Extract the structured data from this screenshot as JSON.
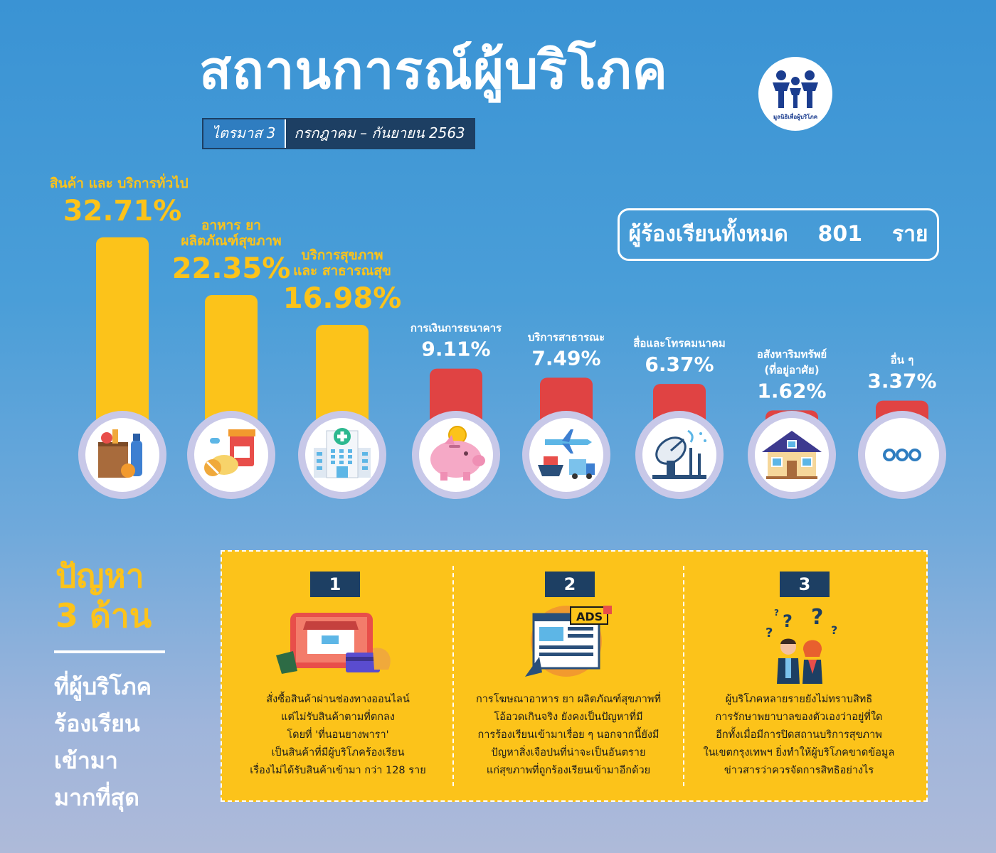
{
  "header": {
    "title": "สถานการณ์ผู้บริโภค",
    "quarter": "ไตรมาส 3",
    "period": "กรกฎาคม – กันยายน 2563",
    "logo_text": "มูลนิธิเพื่อผู้บริโภค"
  },
  "total": {
    "label": "ผู้ร้องเรียนทั้งหมด",
    "count": "801",
    "unit": "ราย"
  },
  "chart_data": {
    "type": "bar",
    "categories": [
      "สินค้า และ บริการทั่วไป",
      "อาหาร ยา ผลิตภัณฑ์สุขภาพ",
      "บริการสุขภาพ และ สาธารณสุข",
      "การเงินการธนาคาร",
      "บริการสาธารณะ",
      "สื่อและโทรคมนาคม",
      "อสังหาริมทรัพย์ (ที่อยู่อาศัย)",
      "อื่น ๆ"
    ],
    "label_lines": [
      [
        "สินค้า และ บริการทั่วไป"
      ],
      [
        "อาหาร ยา",
        "ผลิตภัณฑ์สุขภาพ"
      ],
      [
        "บริการสุขภาพ",
        "และ สาธารณสุข"
      ],
      [
        "การเงินการธนาคาร"
      ],
      [
        "บริการสาธารณะ"
      ],
      [
        "สื่อและโทรคมนาคม"
      ],
      [
        "อสังหาริมทรัพย์",
        "(ที่อยู่อาศัย)"
      ],
      [
        "อื่น ๆ"
      ]
    ],
    "values": [
      32.71,
      22.35,
      16.98,
      9.11,
      7.49,
      6.37,
      1.62,
      3.37
    ],
    "value_labels": [
      "32.71%",
      "22.35%",
      "16.98%",
      "9.11%",
      "7.49%",
      "6.37%",
      "1.62%",
      "3.37%"
    ],
    "icons": [
      "grocery-icon",
      "medicine-icon",
      "hospital-icon",
      "piggy-bank-icon",
      "transport-icon",
      "satellite-icon",
      "house-icon",
      "more-icon"
    ],
    "colors": {
      "top": "#fcc31a",
      "other": "#e04343"
    },
    "unit": "%"
  },
  "problems": {
    "heading": [
      "ปัญหา",
      "3 ด้าน"
    ],
    "subheading": [
      "ที่ผู้บริโภค",
      "ร้องเรียน",
      "เข้ามา",
      "มากที่สุด"
    ],
    "items": [
      {
        "number": "1",
        "icon": "online-shop-icon",
        "lines": [
          "สั่งซื้อสินค้าผ่านช่องทางออนไลน์",
          "แต่ไม่รับสินค้าตามที่ตกลง",
          "โดยที่ 'ที่นอนยางพารา'",
          "เป็นสินค้าที่มีผู้บริโภคร้องเรียน",
          "เรื่องไม่ได้รับสินค้าเข้ามา กว่า 128 ราย"
        ]
      },
      {
        "number": "2",
        "icon": "ads-icon",
        "ads_label": "ADS",
        "lines": [
          "การโฆษณาอาหาร ยา ผลิตภัณฑ์สุขภาพที่",
          "โอ้อวดเกินจริง ยังคงเป็นปัญหาที่มี",
          "การร้องเรียนเข้ามาเรื่อย ๆ นอกจากนี้ยังมี",
          "ปัญหาสิ่งเจือปนที่น่าจะเป็นอันตราย",
          "แก่สุขภาพที่ถูกร้องเรียนเข้ามาอีกด้วย"
        ]
      },
      {
        "number": "3",
        "icon": "confused-people-icon",
        "lines": [
          "ผู้บริโภคหลายรายยังไม่ทราบสิทธิ",
          "การรักษาพยาบาลของตัวเองว่าอยู่ที่ใด",
          "อีกทั้งเมื่อมีการปิดสถานบริการสุขภาพ",
          "ในเขตกรุงเทพฯ ยิ่งทำให้ผู้บริโภคขาดข้อมูล",
          "ข่าวสารว่าควรจัดการสิทธิอย่างไร"
        ]
      }
    ]
  }
}
